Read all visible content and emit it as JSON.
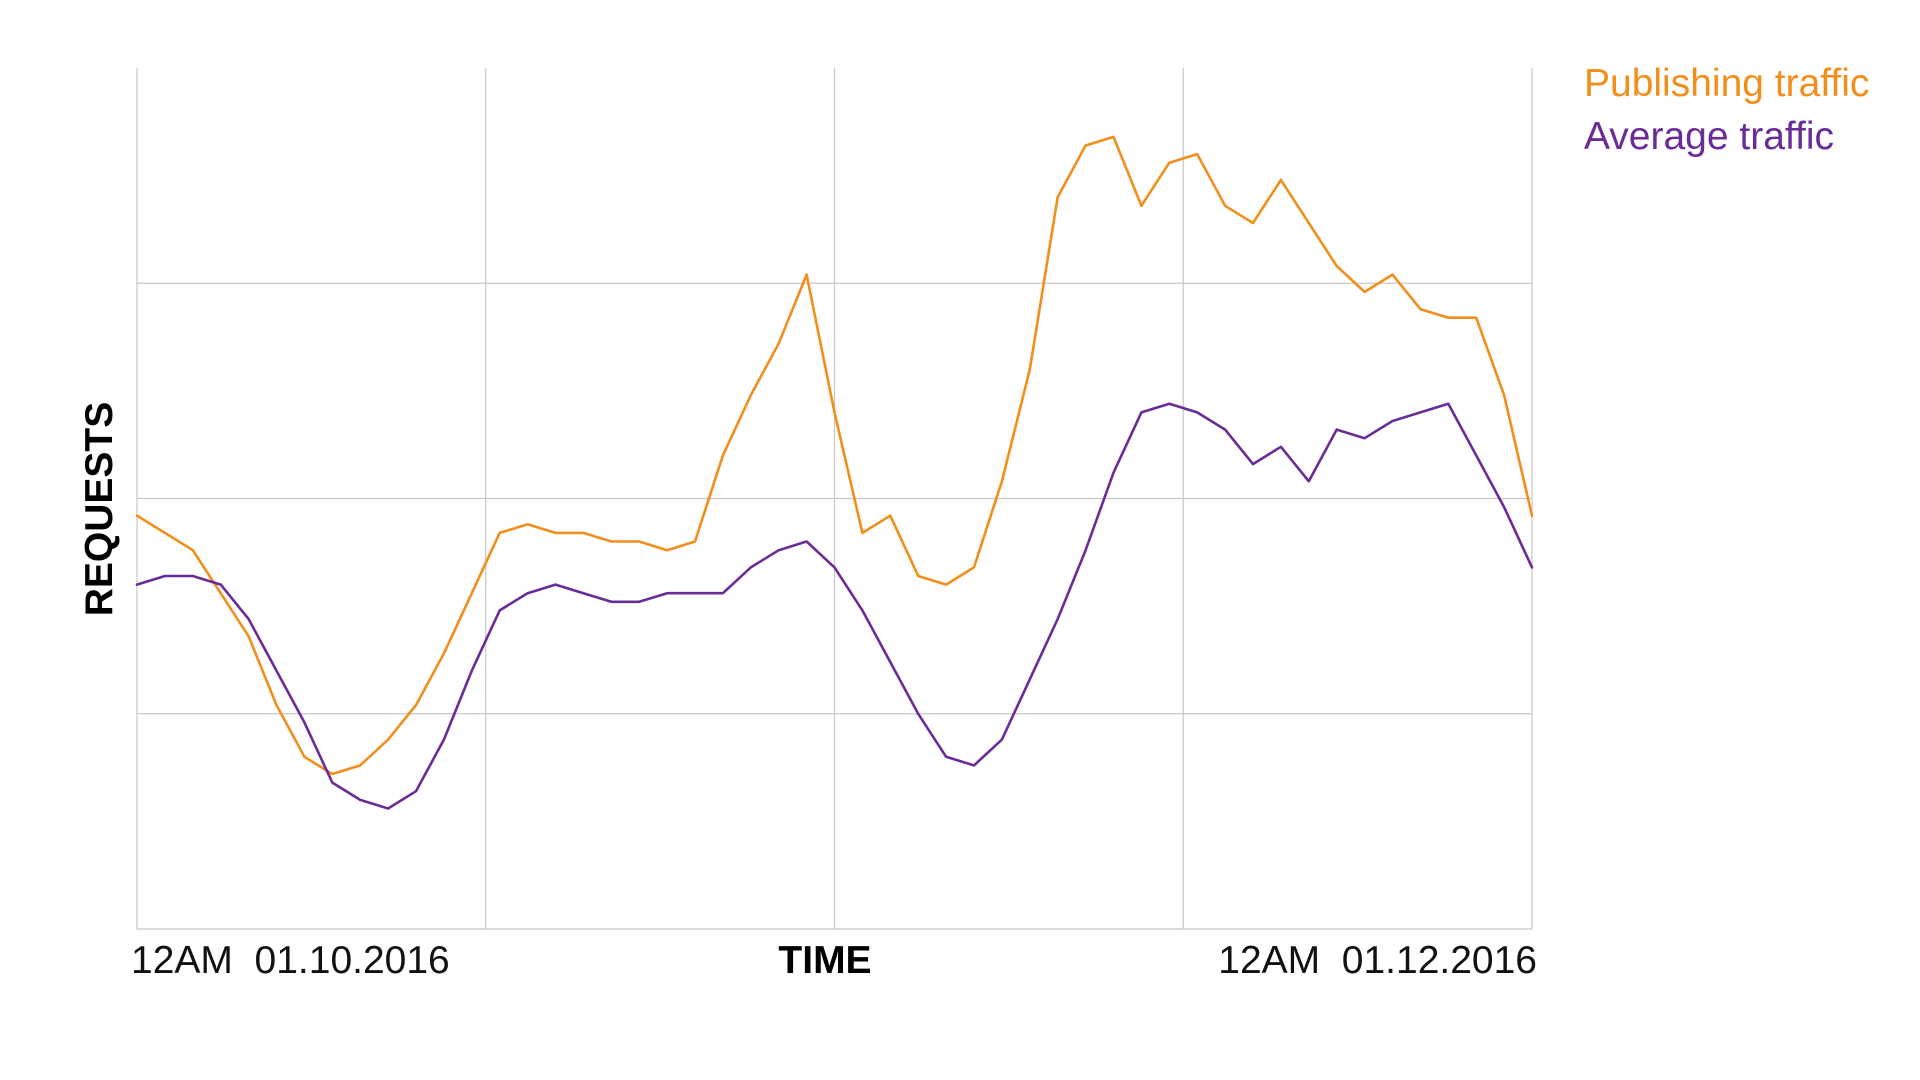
{
  "chart_data": {
    "type": "line",
    "xlabel": "TIME",
    "ylabel": "REQUESTS",
    "x_tick_labels": {
      "start": "12AM  01.10.2016",
      "end": "12AM  01.12.2016"
    },
    "x": [
      0,
      2,
      4,
      6,
      8,
      10,
      12,
      14,
      16,
      18,
      20,
      22,
      24,
      26,
      28,
      30,
      32,
      34,
      36,
      38,
      40,
      42,
      44,
      46,
      48,
      50,
      52,
      54,
      56,
      58,
      60,
      62,
      64,
      66,
      68,
      70,
      72,
      74,
      76,
      78,
      80,
      82,
      84,
      86,
      88,
      90,
      92,
      94,
      96,
      98,
      100
    ],
    "xlim": [
      0,
      100
    ],
    "ylim": [
      0,
      100
    ],
    "grid": true,
    "legend": "top-right",
    "series": [
      {
        "name": "Publishing traffic",
        "color": "#f28f1c",
        "values": [
          48,
          46,
          44,
          39,
          34,
          26,
          20,
          18,
          19,
          22,
          26,
          32,
          39,
          46,
          47,
          46,
          46,
          45,
          45,
          44,
          45,
          55,
          62,
          68,
          76,
          60,
          46,
          48,
          41,
          40,
          42,
          52,
          65,
          85,
          91,
          92,
          84,
          89,
          90,
          84,
          82,
          87,
          82,
          77,
          74,
          76,
          72,
          71,
          71,
          62,
          48
        ],
        "approximate": true
      },
      {
        "name": "Average traffic",
        "color": "#6a2c96",
        "values": [
          40,
          41,
          41,
          40,
          36,
          30,
          24,
          17,
          15,
          14,
          16,
          22,
          30,
          37,
          39,
          40,
          39,
          38,
          38,
          39,
          39,
          39,
          42,
          44,
          45,
          42,
          37,
          31,
          25,
          20,
          19,
          22,
          29,
          36,
          44,
          53,
          60,
          61,
          60,
          58,
          54,
          56,
          52,
          58,
          57,
          59,
          60,
          61,
          55,
          49,
          42
        ],
        "approximate": true
      }
    ]
  }
}
